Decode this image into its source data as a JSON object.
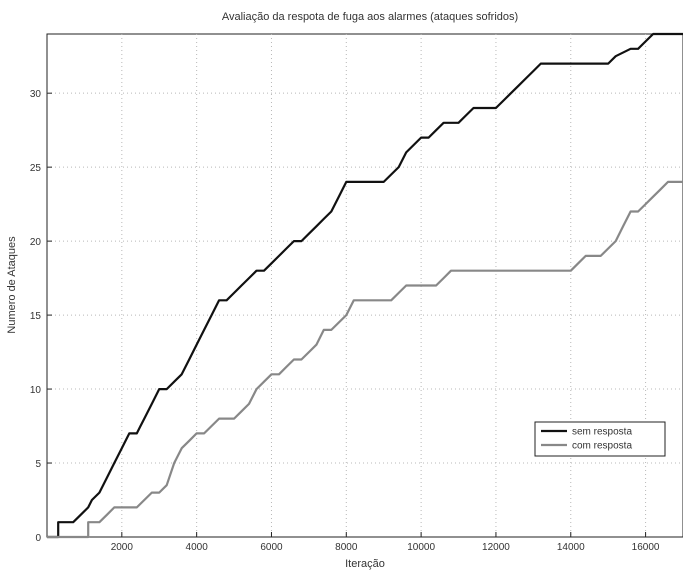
{
  "chart_data": {
    "type": "line",
    "title": "Avaliação da respota de fuga aos alarmes (ataques sofridos)",
    "xlabel": "Iteração",
    "ylabel": "Numero de Ataques",
    "xlim": [
      0,
      17000
    ],
    "ylim": [
      0,
      34
    ],
    "xticks": [
      2000,
      4000,
      6000,
      8000,
      10000,
      12000,
      14000,
      16000
    ],
    "yticks": [
      0,
      5,
      10,
      15,
      20,
      25,
      30
    ],
    "grid": true,
    "legend_position": "lower-right",
    "series": [
      {
        "name": "sem resposta",
        "color": "#111111",
        "x": [
          0,
          300,
          300,
          500,
          700,
          900,
          1100,
          1200,
          1400,
          1600,
          1800,
          2000,
          2200,
          2400,
          2500,
          2600,
          2800,
          3000,
          3200,
          3400,
          3600,
          3800,
          4000,
          4200,
          4400,
          4600,
          4800,
          5000,
          5200,
          5400,
          5600,
          5800,
          6000,
          6200,
          6400,
          6600,
          6800,
          7000,
          7200,
          7400,
          7600,
          7800,
          8000,
          8200,
          8400,
          8600,
          9000,
          9200,
          9400,
          9600,
          10000,
          10200,
          10400,
          10600,
          10800,
          11000,
          11200,
          11400,
          11600,
          11800,
          12000,
          12200,
          12400,
          12600,
          12800,
          13000,
          13200,
          13400,
          13600,
          13800,
          14000,
          15000,
          15200,
          15600,
          15800,
          16000,
          16200,
          16500,
          17000
        ],
        "values": [
          0,
          0,
          1,
          1,
          1,
          1.5,
          2,
          2.5,
          3,
          4,
          5,
          6,
          7,
          7,
          7.5,
          8,
          9,
          10,
          10,
          10.5,
          11,
          12,
          13,
          14,
          15,
          16,
          16,
          16.5,
          17,
          17.5,
          18,
          18,
          18.5,
          19,
          19.5,
          20,
          20,
          20.5,
          21,
          21.5,
          22,
          23,
          24,
          24,
          24,
          24,
          24,
          24.5,
          25,
          26,
          27,
          27,
          27.5,
          28,
          28,
          28,
          28.5,
          29,
          29,
          29,
          29,
          29.5,
          30,
          30.5,
          31,
          31.5,
          32,
          32,
          32,
          32,
          32,
          32,
          32.5,
          33,
          33,
          33.5,
          34,
          34,
          34
        ]
      },
      {
        "name": "com resposta",
        "color": "#888888",
        "x": [
          0,
          1100,
          1100,
          1200,
          1400,
          1600,
          1800,
          2000,
          2200,
          2400,
          2600,
          2800,
          3000,
          3200,
          3400,
          3600,
          3800,
          4000,
          4200,
          4400,
          4600,
          4800,
          5000,
          5200,
          5400,
          5600,
          5800,
          6000,
          6200,
          6400,
          6600,
          6800,
          7000,
          7200,
          7400,
          7600,
          7800,
          8000,
          8200,
          8400,
          8600,
          8800,
          9000,
          9200,
          9400,
          9600,
          10000,
          10400,
          10600,
          10800,
          11000,
          11500,
          12000,
          12500,
          13000,
          13500,
          14000,
          14200,
          14400,
          14600,
          14800,
          15000,
          15200,
          15400,
          15600,
          15800,
          16000,
          16200,
          16400,
          16600,
          16800,
          17000
        ],
        "values": [
          0,
          0,
          1,
          1,
          1,
          1.5,
          2,
          2,
          2,
          2,
          2.5,
          3,
          3,
          3.5,
          5,
          6,
          6.5,
          7,
          7,
          7.5,
          8,
          8,
          8,
          8.5,
          9,
          10,
          10.5,
          11,
          11,
          11.5,
          12,
          12,
          12.5,
          13,
          14,
          14,
          14.5,
          15,
          16,
          16,
          16,
          16,
          16,
          16,
          16.5,
          17,
          17,
          17,
          17.5,
          18,
          18,
          18,
          18,
          18,
          18,
          18,
          18,
          18.5,
          19,
          19,
          19,
          19.5,
          20,
          21,
          22,
          22,
          22.5,
          23,
          23.5,
          24,
          24,
          24
        ]
      }
    ]
  }
}
